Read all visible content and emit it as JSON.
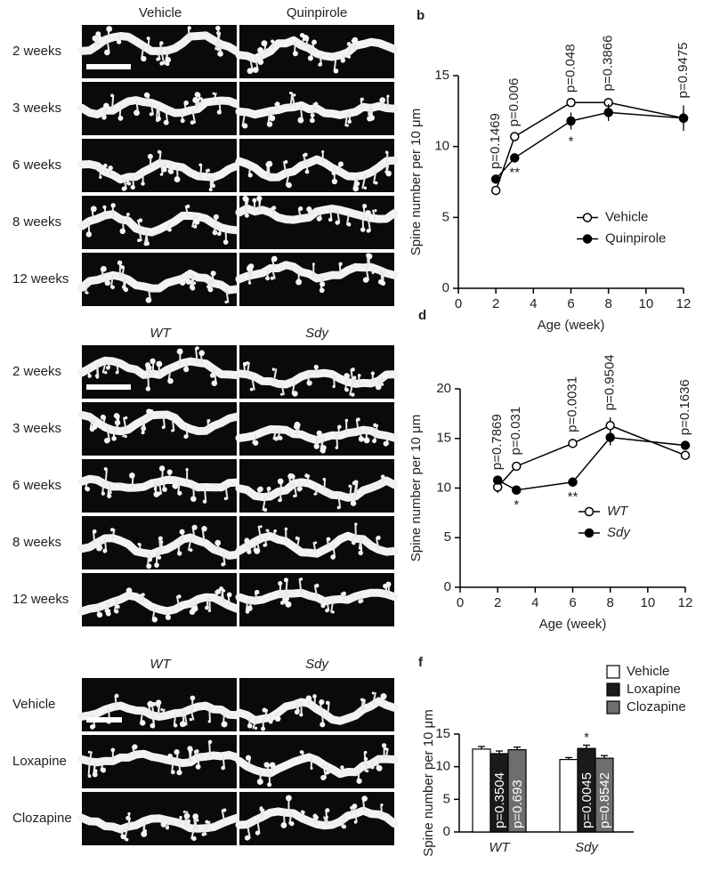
{
  "image_panels": [
    {
      "columns": [
        "Vehicle",
        "Quinpirole"
      ],
      "rows": [
        "2 weeks",
        "3 weeks",
        "6 weeks",
        "8 weeks",
        "12 weeks"
      ],
      "italic": false
    },
    {
      "columns": [
        "WT",
        "Sdy"
      ],
      "rows": [
        "2 weeks",
        "3 weeks",
        "6 weeks",
        "8 weeks",
        "12 weeks"
      ],
      "italic": true
    },
    {
      "columns": [
        "WT",
        "Sdy"
      ],
      "rows": [
        "Vehicle",
        "Loxapine",
        "Clozapine"
      ],
      "italic": true
    }
  ],
  "chart_data": [
    {
      "type": "line",
      "panel": "b",
      "x_label": "Age (week)",
      "y_label": "Spine number per 10 μm",
      "x": [
        2,
        3,
        6,
        8,
        12
      ],
      "xlim": [
        0,
        12
      ],
      "xticks": [
        0,
        2,
        4,
        6,
        8,
        10,
        12
      ],
      "ylim": [
        0,
        15
      ],
      "yticks": [
        0,
        5,
        10,
        15
      ],
      "legend": "center right",
      "italic": false,
      "series": [
        {
          "name": "Vehicle",
          "color": "#000000",
          "marker": "open",
          "values": [
            6.9,
            10.7,
            13.1,
            13.1,
            12.0
          ],
          "errors": [
            0.2,
            0.2,
            0.2,
            0.3,
            0.4
          ]
        },
        {
          "name": "Quinpirole",
          "color": "#000000",
          "marker": "filled",
          "values": [
            7.7,
            9.2,
            11.8,
            12.4,
            12.0
          ],
          "errors": [
            0.2,
            0.2,
            0.6,
            0.6,
            0.9
          ]
        }
      ],
      "p_labels": [
        "p=0.1469",
        "p=0.006",
        "p=0.048",
        "p=0.3866",
        "p=0.9475"
      ],
      "stars": [
        null,
        "**",
        "*",
        null,
        null
      ]
    },
    {
      "type": "line",
      "panel": "d",
      "x_label": "Age (week)",
      "y_label": "Spine number per 10 μm",
      "x": [
        2,
        3,
        6,
        8,
        12
      ],
      "xlim": [
        0,
        12
      ],
      "xticks": [
        0,
        2,
        4,
        6,
        8,
        10,
        12
      ],
      "ylim": [
        0,
        20
      ],
      "yticks": [
        0,
        5,
        10,
        15,
        20
      ],
      "legend": "lower right",
      "italic": true,
      "series": [
        {
          "name": "WT",
          "color": "#000000",
          "marker": "open",
          "values": [
            10.1,
            12.2,
            14.5,
            16.3,
            13.3
          ],
          "errors": [
            0.6,
            0.4,
            0.4,
            0.8,
            0.4
          ]
        },
        {
          "name": "Sdy",
          "color": "#000000",
          "marker": "filled",
          "values": [
            10.8,
            9.8,
            10.6,
            15.1,
            14.3
          ],
          "errors": [
            0.3,
            0.3,
            0.3,
            0.8,
            0.3
          ]
        }
      ],
      "p_labels": [
        "p=0.7869",
        "p=0.031",
        "p=0.0031",
        "p=0.9504",
        "p=0.1636"
      ],
      "stars": [
        null,
        "*",
        "**",
        null,
        null
      ]
    },
    {
      "type": "bar",
      "panel": "f",
      "y_label": "Spine number per 10 μm",
      "categories": [
        "WT",
        "Sdy"
      ],
      "ylim": [
        0,
        15
      ],
      "yticks": [
        0,
        5,
        10,
        15
      ],
      "legend": "upper right",
      "italic": true,
      "series": [
        {
          "name": "Vehicle",
          "color": "#ffffff",
          "values": [
            12.7,
            11.1
          ],
          "errors": [
            0.4,
            0.3
          ],
          "p_labels": [
            null,
            null
          ],
          "stars": [
            null,
            null
          ]
        },
        {
          "name": "Loxapine",
          "color": "#1a1a1a",
          "values": [
            12.0,
            12.8
          ],
          "errors": [
            0.4,
            0.5
          ],
          "p_labels": [
            "p=0.3504",
            "p=0.0045"
          ],
          "stars": [
            null,
            "*"
          ]
        },
        {
          "name": "Clozapine",
          "color": "#6e6e6e",
          "values": [
            12.6,
            11.3
          ],
          "errors": [
            0.4,
            0.4
          ],
          "p_labels": [
            "p=0.693",
            "p=0.8542"
          ],
          "stars": [
            null,
            null
          ]
        }
      ]
    }
  ]
}
